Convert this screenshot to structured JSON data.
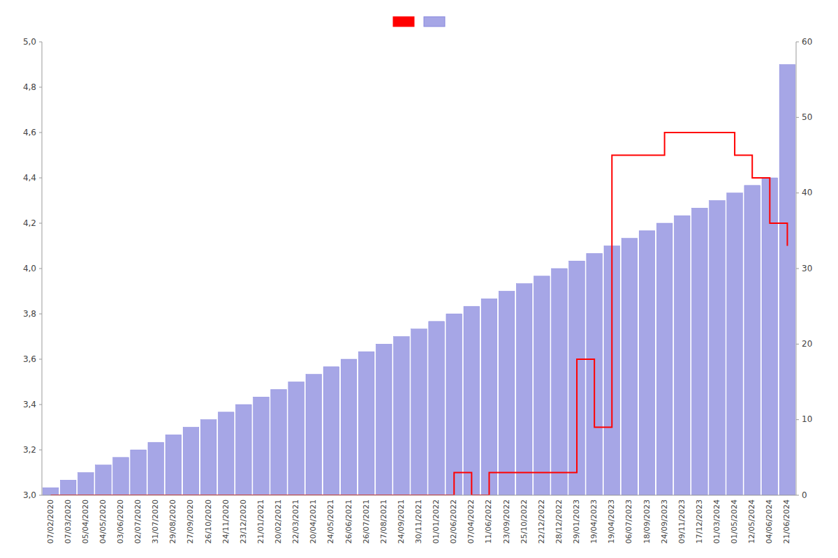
{
  "chart_data": {
    "type": "bar",
    "categories": [
      "07/02/2020",
      "07/03/2020",
      "05/04/2020",
      "04/05/2020",
      "03/06/2020",
      "02/07/2020",
      "31/07/2020",
      "29/08/2020",
      "27/09/2020",
      "26/10/2020",
      "24/11/2020",
      "23/12/2020",
      "21/01/2021",
      "20/02/2021",
      "22/03/2021",
      "20/04/2021",
      "24/05/2021",
      "26/06/2021",
      "26/07/2021",
      "27/08/2021",
      "24/09/2021",
      "30/11/2021",
      "01/01/2022",
      "02/06/2022",
      "07/04/2022",
      "11/06/2022",
      "23/09/2022",
      "25/10/2022",
      "22/12/2022",
      "28/12/2022",
      "29/01/2023",
      "19/04/2023",
      "19/04/2023",
      "06/07/2023",
      "18/09/2023",
      "24/09/2023",
      "09/11/2023",
      "17/12/2023",
      "01/03/2024",
      "01/05/2024",
      "12/05/2024",
      "04/06/2024",
      "21/06/2024"
    ],
    "series": [
      {
        "type": "step",
        "color": "#ff0000",
        "values": [
          3.0,
          3.0,
          3.0,
          3.0,
          3.0,
          3.0,
          3.0,
          3.0,
          3.0,
          3.0,
          3.0,
          3.0,
          3.0,
          3.0,
          3.0,
          3.0,
          3.0,
          3.0,
          3.0,
          3.0,
          3.0,
          3.0,
          3.0,
          3.1,
          3.0,
          3.1,
          3.1,
          3.1,
          3.1,
          3.1,
          3.6,
          3.3,
          4.5,
          4.5,
          4.5,
          4.6,
          4.6,
          4.6,
          4.6,
          4.5,
          4.4,
          4.2,
          4.1
        ]
      },
      {
        "type": "bar",
        "axis": "y2",
        "color": "#8888dd",
        "values": [
          1,
          2,
          3,
          4,
          5,
          6,
          7,
          8,
          9,
          10,
          11,
          12,
          13,
          14,
          15,
          16,
          17,
          18,
          19,
          20,
          21,
          22,
          23,
          24,
          25,
          26,
          27,
          28,
          29,
          30,
          31,
          32,
          33,
          34,
          35,
          36,
          37,
          38,
          39,
          40,
          41,
          42,
          57
        ]
      }
    ],
    "ylim": [
      3.0,
      5.0
    ],
    "yticks": [
      {
        "value": 3.0,
        "label": "3,0"
      },
      {
        "value": 3.2,
        "label": "3,2"
      },
      {
        "value": 3.4,
        "label": "3,4"
      },
      {
        "value": 3.6,
        "label": "3,6"
      },
      {
        "value": 3.8,
        "label": "3,8"
      },
      {
        "value": 4.0,
        "label": "4,0"
      },
      {
        "value": 4.2,
        "label": "4,2"
      },
      {
        "value": 4.4,
        "label": "4,4"
      },
      {
        "value": 4.6,
        "label": "4,6"
      },
      {
        "value": 4.8,
        "label": "4,8"
      },
      {
        "value": 5.0,
        "label": "5,0"
      }
    ],
    "y2lim": [
      0,
      60
    ],
    "y2ticks": [
      0,
      10,
      20,
      30,
      40,
      50,
      60
    ],
    "grid": false,
    "legend": "top"
  }
}
